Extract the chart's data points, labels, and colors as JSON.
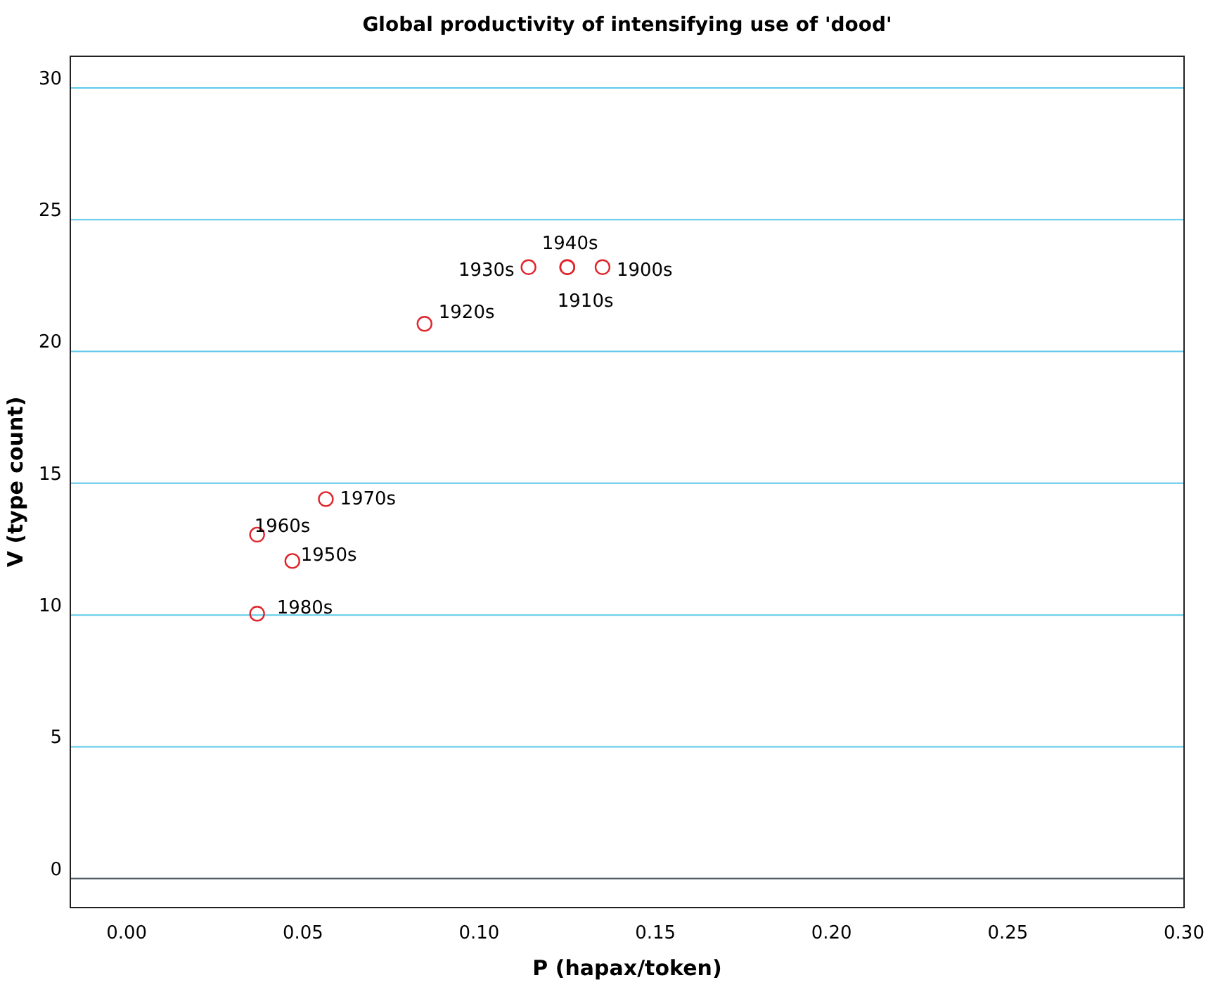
{
  "chart_data": {
    "type": "scatter",
    "title": "Global productivity of intensifying use of 'dood'",
    "xlabel": "P (hapax/token)",
    "ylabel": "V (type count)",
    "x": [
      0.135,
      0.125,
      0.0845,
      0.114,
      0.125,
      0.047,
      0.037,
      0.0565,
      0.037
    ],
    "series": [
      {
        "color": "#e0242c",
        "values": [
          23.2,
          23.2,
          21.05,
          23.2,
          23.2,
          12.05,
          13.05,
          14.4,
          10.05
        ]
      }
    ],
    "annotations": [
      {
        "text": "1900s",
        "x": 0.135,
        "y": 23.2
      },
      {
        "text": "1910s",
        "x": 0.125,
        "y": 23.2
      },
      {
        "text": "1920s",
        "x": 0.0845,
        "y": 21.05
      },
      {
        "text": "1930s",
        "x": 0.114,
        "y": 23.2
      },
      {
        "text": "1940s",
        "x": 0.125,
        "y": 23.2
      },
      {
        "text": "1950s",
        "x": 0.047,
        "y": 12.05
      },
      {
        "text": "1960s",
        "x": 0.037,
        "y": 13.05
      },
      {
        "text": "1970s",
        "x": 0.0565,
        "y": 14.4
      },
      {
        "text": "1980s",
        "x": 0.037,
        "y": 10.05
      }
    ],
    "xlim": [
      -0.016,
      0.3
    ],
    "xticks": [
      {
        "value": 0,
        "label": "0.00"
      },
      {
        "value": 0.05,
        "label": "0.05"
      },
      {
        "value": 0.1,
        "label": "0.10"
      },
      {
        "value": 0.15,
        "label": "0.15"
      },
      {
        "value": 0.2,
        "label": "0.20"
      },
      {
        "value": 0.25,
        "label": "0.25"
      },
      {
        "value": 0.3,
        "label": "0.30"
      }
    ],
    "ylim": [
      -1.1,
      31.2
    ],
    "yticks": [
      0,
      5,
      10,
      15,
      20,
      25,
      30
    ],
    "grid": "y",
    "marker": "circle",
    "ref_lines": [
      {
        "axis": "y",
        "value": 0,
        "color": "#555555"
      }
    ]
  }
}
